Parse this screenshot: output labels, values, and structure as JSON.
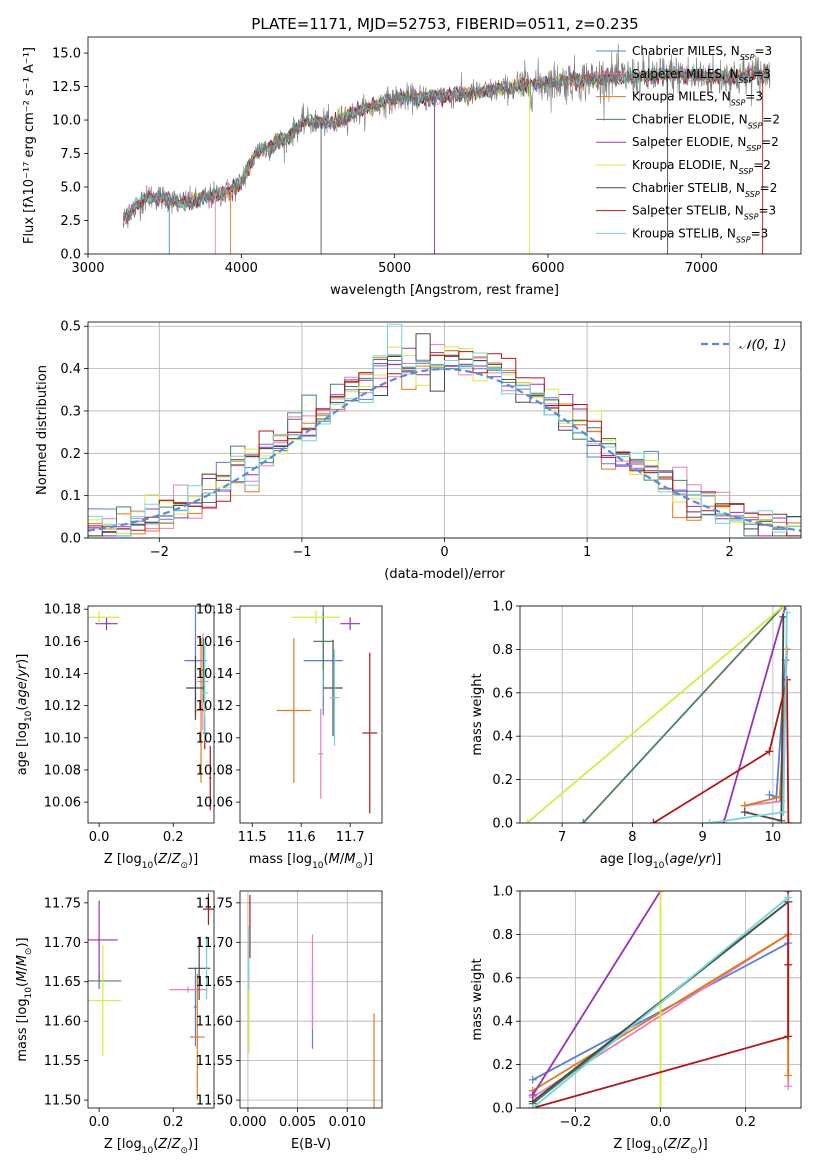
{
  "figure_title": "PLATE=1171, MJD=52753, FIBERID=0511, z=0.235",
  "models": [
    {
      "name": "Chabrier MILES",
      "nssp": "3",
      "color": "#5b7fd6"
    },
    {
      "name": "Salpeter MILES",
      "nssp": "3",
      "color": "#e87fb8"
    },
    {
      "name": "Kroupa MILES",
      "nssp": "3",
      "color": "#e07a20"
    },
    {
      "name": "Chabrier ELODIE",
      "nssp": "2",
      "color": "#4f7f5c"
    },
    {
      "name": "Salpeter ELODIE",
      "nssp": "2",
      "color": "#9b30b8"
    },
    {
      "name": "Kroupa ELODIE",
      "nssp": "2",
      "color": "#d8ea45"
    },
    {
      "name": "Chabrier STELIB",
      "nssp": "2",
      "color": "#4a4a4a"
    },
    {
      "name": "Salpeter STELIB",
      "nssp": "3",
      "color": "#b01818"
    },
    {
      "name": "Kroupa STELIB",
      "nssp": "3",
      "color": "#72d6dc"
    }
  ],
  "chart_data": [
    {
      "type": "line",
      "id": "spectrum",
      "xlabel": "wavelength [Angstrom, rest frame]",
      "ylabel": "Flux [fλ10⁻¹⁷ erg cm⁻² s⁻¹ A⁻¹]",
      "xlim": [
        3000,
        7650
      ],
      "ylim": [
        0,
        16.2
      ],
      "xticks": [
        "3000",
        "4000",
        "5000",
        "6000",
        "7000"
      ],
      "yticks": [
        "0.0",
        "2.5",
        "5.0",
        "7.5",
        "10.0",
        "12.5",
        "15.0"
      ],
      "x_range": [
        3230,
        7450
      ],
      "anchors": {
        "x": [
          3230,
          3300,
          3400,
          3500,
          3600,
          3700,
          3800,
          3900,
          4000,
          4100,
          4200,
          4300,
          4400,
          4600,
          4800,
          5000,
          5200,
          5400,
          5600,
          5800,
          6000,
          6200,
          6400,
          6600,
          6800,
          7000,
          7200,
          7450
        ],
        "y": [
          2.6,
          3.4,
          4.3,
          4.2,
          3.8,
          3.9,
          4.3,
          4.6,
          5.3,
          7.6,
          8.1,
          8.6,
          9.9,
          9.8,
          10.8,
          11.6,
          11.7,
          11.9,
          12.1,
          12.5,
          12.8,
          13.0,
          13.2,
          13.2,
          13.4,
          13.3,
          13.2,
          13.5
        ]
      },
      "spikes_x": [
        3530,
        3830,
        3930,
        4520,
        5260,
        5880,
        6780,
        7400
      ],
      "grid": false,
      "legend": "upper right"
    },
    {
      "type": "histogram",
      "id": "residuals",
      "xlabel": "(data-model)/error",
      "ylabel": "Normed distribution",
      "xlim": [
        -2.5,
        2.5
      ],
      "ylim": [
        0,
        0.51
      ],
      "xticks": [
        -2,
        -1,
        0,
        1,
        2
      ],
      "yticks": [
        0,
        0.1,
        0.2,
        0.3,
        0.4,
        0.5
      ],
      "bin_width": 0.1,
      "reference_curve": "𝒩(0, 1)",
      "reference_color": "#5b8ad6",
      "grid": true,
      "legend": "upper right"
    },
    {
      "type": "errorbar",
      "id": "age_vs_Z",
      "xlabel": "Z [log₁₀(Z/Z⊙)]",
      "ylabel": "age  [log₁₀(age/yr)]",
      "xlim": [
        -0.03,
        0.31
      ],
      "ylim": [
        10.047,
        10.182
      ],
      "xticks": [
        0.0,
        0.2
      ],
      "yticks": [
        10.06,
        10.08,
        10.1,
        10.12,
        10.14,
        10.16,
        10.18
      ],
      "points": [
        {
          "m": 0,
          "x": 0.26,
          "y": 10.148,
          "ex": 0.03,
          "ey": 0.034
        },
        {
          "m": 1,
          "x": 0.28,
          "y": 10.135,
          "ex": 0.015,
          "ey": 0.03
        },
        {
          "m": 2,
          "x": 0.275,
          "y": 10.117,
          "ex": 0.015,
          "ey": 0.045
        },
        {
          "m": 3,
          "x": 0.282,
          "y": 10.142,
          "ex": 0.005,
          "ey": 0.02
        },
        {
          "m": 4,
          "x": 0.02,
          "y": 10.171,
          "ex": 0.03,
          "ey": 0.004
        },
        {
          "m": 5,
          "x": 0.0,
          "y": 10.175,
          "ex": 0.055,
          "ey": 0.004
        },
        {
          "m": 6,
          "x": 0.26,
          "y": 10.131,
          "ex": 0.025,
          "ey": 0.02
        },
        {
          "m": 7,
          "x": 0.285,
          "y": 10.103,
          "ex": 0.005,
          "ey": 0.01
        },
        {
          "m": 8,
          "x": 0.285,
          "y": 10.128,
          "ex": 0.01,
          "ey": 0.03
        },
        {
          "m": 7,
          "x": 0.3,
          "y": 10.075,
          "ex": 0.003,
          "ey": 0.02
        }
      ],
      "grid": false
    },
    {
      "type": "errorbar",
      "id": "age_vs_mass",
      "xlabel": "mass [log₁₀(M/M⊙)]",
      "xlim": [
        11.475,
        11.765
      ],
      "ylim": [
        10.047,
        10.182
      ],
      "xticks": [
        11.5,
        11.6,
        11.7
      ],
      "yticks": [
        10.06,
        10.08,
        10.1,
        10.12,
        10.14,
        10.16,
        10.18
      ],
      "points": [
        {
          "m": 0,
          "x": 11.645,
          "y": 10.148,
          "ex": 0.04,
          "ey": 0.034
        },
        {
          "m": 1,
          "x": 11.64,
          "y": 10.09,
          "ex": 0.005,
          "ey": 0.028
        },
        {
          "m": 2,
          "x": 11.585,
          "y": 10.117,
          "ex": 0.035,
          "ey": 0.045
        },
        {
          "m": 3,
          "x": 11.645,
          "y": 10.16,
          "ex": 0.02,
          "ey": 0.018
        },
        {
          "m": 4,
          "x": 11.7,
          "y": 10.171,
          "ex": 0.02,
          "ey": 0.004
        },
        {
          "m": 5,
          "x": 11.63,
          "y": 10.175,
          "ex": 0.05,
          "ey": 0.004
        },
        {
          "m": 6,
          "x": 11.665,
          "y": 10.131,
          "ex": 0.02,
          "ey": 0.03
        },
        {
          "m": 7,
          "x": 11.74,
          "y": 10.103,
          "ex": 0.015,
          "ey": 0.05
        },
        {
          "m": 8,
          "x": 11.668,
          "y": 10.125,
          "ex": 0.01,
          "ey": 0.03
        }
      ],
      "grid": false
    },
    {
      "type": "line",
      "id": "massweight_vs_age",
      "xlabel": "age  [log₁₀(age/yr)]",
      "ylabel": "mass weight",
      "xlim": [
        6.4,
        10.4
      ],
      "ylim": [
        0,
        1
      ],
      "xticks": [
        7,
        8,
        9,
        10
      ],
      "yticks": [
        0.0,
        0.2,
        0.4,
        0.6,
        0.8,
        1.0
      ],
      "series": [
        {
          "m": 0,
          "x": [
            9.95,
            10.05,
            10.18
          ],
          "y": [
            0.13,
            0.12,
            0.75
          ]
        },
        {
          "m": 1,
          "x": [
            9.6,
            10.12,
            10.2
          ],
          "y": [
            0.08,
            0.1,
            0.8
          ]
        },
        {
          "m": 2,
          "x": [
            9.6,
            10.1,
            10.2
          ],
          "y": [
            0.08,
            0.12,
            0.8
          ]
        },
        {
          "m": 3,
          "x": [
            7.3,
            10.15
          ],
          "y": [
            0.0,
            1.0
          ]
        },
        {
          "m": 4,
          "x": [
            9.3,
            10.18
          ],
          "y": [
            0.0,
            1.0
          ]
        },
        {
          "m": 5,
          "x": [
            6.5,
            10.15
          ],
          "y": [
            0.0,
            1.0
          ]
        },
        {
          "m": 6,
          "x": [
            9.6,
            10.12,
            10.15
          ],
          "y": [
            0.05,
            0.01,
            0.95
          ]
        },
        {
          "m": 7,
          "x": [
            8.3,
            9.95,
            10.2,
            10.22
          ],
          "y": [
            0.0,
            0.33,
            0.66,
            0.0
          ]
        },
        {
          "m": 8,
          "x": [
            9.1,
            10.15,
            10.2
          ],
          "y": [
            0.0,
            0.05,
            0.97
          ]
        }
      ],
      "grid": true
    },
    {
      "type": "errorbar",
      "id": "mass_vs_Z",
      "xlabel": "Z [log₁₀(Z/Z⊙)]",
      "ylabel": "mass [log₁₀(M/M⊙)]",
      "xlim": [
        -0.03,
        0.31
      ],
      "ylim": [
        11.49,
        11.765
      ],
      "xticks": [
        0.0,
        0.2
      ],
      "yticks": [
        11.5,
        11.55,
        11.6,
        11.65,
        11.7,
        11.75
      ],
      "points": [
        {
          "m": 0,
          "x": 0.26,
          "y": 11.618,
          "ex": 0.005,
          "ey": 0.05
        },
        {
          "m": 1,
          "x": 0.24,
          "y": 11.64,
          "ex": 0.05,
          "ey": 0.004
        },
        {
          "m": 2,
          "x": 0.265,
          "y": 11.58,
          "ex": 0.02,
          "ey": 0.08
        },
        {
          "m": 3,
          "x": 0.0,
          "y": 11.651,
          "ex": 0.06,
          "ey": 0.01
        },
        {
          "m": 4,
          "x": 0.0,
          "y": 11.703,
          "ex": 0.05,
          "ey": 0.05
        },
        {
          "m": 5,
          "x": 0.01,
          "y": 11.626,
          "ex": 0.05,
          "ey": 0.07
        },
        {
          "m": 6,
          "x": 0.27,
          "y": 11.667,
          "ex": 0.03,
          "ey": 0.04
        },
        {
          "m": 7,
          "x": 0.295,
          "y": 11.742,
          "ex": 0.015,
          "ey": 0.02
        },
        {
          "m": 8,
          "x": 0.29,
          "y": 11.668,
          "ex": 0.005,
          "ey": 0.04
        }
      ],
      "grid": false
    },
    {
      "type": "errorbar",
      "id": "mass_vs_ebv",
      "xlabel": "E(B-V)",
      "xlim": [
        -0.0008,
        0.0135
      ],
      "ylim": [
        11.49,
        11.765
      ],
      "xticks": [
        0.0,
        0.005,
        0.01
      ],
      "yticks": [
        11.5,
        11.55,
        11.6,
        11.65,
        11.7,
        11.75
      ],
      "points": [
        {
          "m": 0,
          "x": 0.0065,
          "y": 11.62,
          "ex": 0,
          "ey": 0.055
        },
        {
          "m": 1,
          "x": 0.0065,
          "y": 11.65,
          "ex": 0,
          "ey": 0.06
        },
        {
          "m": 2,
          "x": 0.0127,
          "y": 11.55,
          "ex": 0,
          "ey": 0.06
        },
        {
          "m": 7,
          "x": 0.0002,
          "y": 11.72,
          "ex": 0,
          "ey": 0.04
        },
        {
          "m": 8,
          "x": 0.0001,
          "y": 11.67,
          "ex": 0,
          "ey": 0.05
        },
        {
          "m": 5,
          "x": 0.0001,
          "y": 11.6,
          "ex": 0,
          "ey": 0.04
        }
      ],
      "grid": true
    },
    {
      "type": "line",
      "id": "massweight_vs_Z",
      "xlabel": "Z [log₁₀(Z/Z⊙)]",
      "ylabel": "mass weight",
      "xlim": [
        -0.33,
        0.33
      ],
      "ylim": [
        0,
        1
      ],
      "xticks": [
        -0.2,
        0.0,
        0.2
      ],
      "yticks": [
        0.0,
        0.2,
        0.4,
        0.6,
        0.8,
        1.0
      ],
      "series": [
        {
          "m": 0,
          "x": [
            -0.3,
            0.3
          ],
          "y": [
            0.13,
            0.76
          ]
        },
        {
          "m": 1,
          "x": [
            -0.3,
            0.3,
            0.3
          ],
          "y": [
            0.05,
            0.8,
            0.1
          ]
        },
        {
          "m": 2,
          "x": [
            -0.3,
            0.3,
            0.3
          ],
          "y": [
            0.08,
            0.8,
            0.15
          ]
        },
        {
          "m": 3,
          "x": [
            -0.3,
            0.3
          ],
          "y": [
            0.02,
            0.95
          ]
        },
        {
          "m": 4,
          "x": [
            -0.3,
            0.0
          ],
          "y": [
            0.06,
            1.0
          ]
        },
        {
          "m": 5,
          "x": [
            0.0,
            0.0
          ],
          "y": [
            0.0,
            1.0
          ]
        },
        {
          "m": 6,
          "x": [
            -0.3,
            0.3
          ],
          "y": [
            0.03,
            0.95
          ]
        },
        {
          "m": 7,
          "x": [
            -0.3,
            0.3,
            0.3,
            0.3
          ],
          "y": [
            0.0,
            0.33,
            0.66,
            1.0
          ]
        },
        {
          "m": 8,
          "x": [
            -0.3,
            0.3
          ],
          "y": [
            0.0,
            0.97
          ]
        }
      ],
      "grid": true
    }
  ]
}
